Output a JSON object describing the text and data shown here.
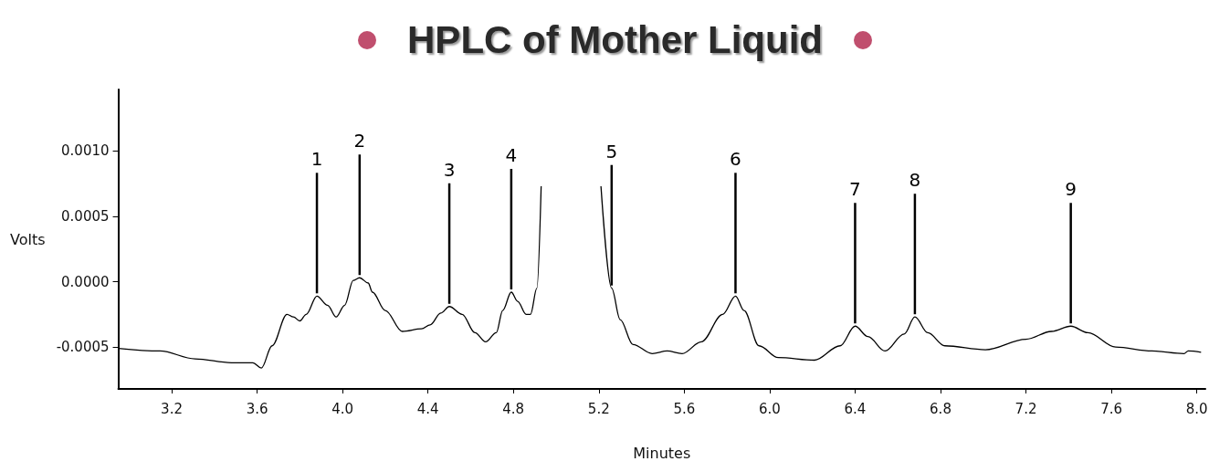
{
  "chart_data": {
    "type": "line",
    "title": "HPLC of Mother Liquid",
    "xlabel": "Minutes",
    "ylabel": "Volts",
    "x": [
      2.95,
      3.145,
      3.31,
      3.48,
      3.58,
      3.62,
      3.67,
      3.74,
      3.77,
      3.8,
      3.83,
      3.88,
      3.93,
      3.97,
      4.01,
      4.05,
      4.08,
      4.12,
      4.14,
      4.2,
      4.28,
      4.37,
      4.41,
      4.46,
      4.5,
      4.56,
      4.62,
      4.67,
      4.72,
      4.75,
      4.79,
      4.82,
      4.86,
      4.88,
      4.91,
      4.93,
      5.05,
      5.21,
      5.26,
      5.3,
      5.36,
      5.45,
      5.52,
      5.59,
      5.68,
      5.78,
      5.84,
      5.88,
      5.95,
      6.04,
      6.21,
      6.33,
      6.4,
      6.46,
      6.54,
      6.63,
      6.68,
      6.74,
      6.82,
      7.01,
      7.2,
      7.32,
      7.41,
      7.49,
      7.62,
      7.79,
      7.94,
      7.96,
      8.02
    ],
    "series": [
      {
        "color": "#000000",
        "values": [
          -0.00051,
          -0.00053,
          -0.00059,
          -0.00062,
          -0.00062,
          -0.00066,
          -0.00049,
          -0.00025,
          -0.00027,
          -0.0003,
          -0.00025,
          -0.00011,
          -0.00018,
          -0.00027,
          -0.00018,
          1e-05,
          3e-05,
          -1e-05,
          -8e-05,
          -0.00022,
          -0.00038,
          -0.00036,
          -0.00033,
          -0.00024,
          -0.00019,
          -0.00025,
          -0.00039,
          -0.00046,
          -0.00039,
          -0.00022,
          -8e-05,
          -0.00015,
          -0.00025,
          -0.00025,
          -5e-05,
          0.00073,
          null,
          0.00073,
          -5e-05,
          -0.00029,
          -0.00048,
          -0.00055,
          -0.00053,
          -0.00055,
          -0.00046,
          -0.00025,
          -0.00011,
          -0.00022,
          -0.00049,
          -0.00058,
          -0.0006,
          -0.00049,
          -0.00034,
          -0.00042,
          -0.00053,
          -0.0004,
          -0.00027,
          -0.00039,
          -0.00049,
          -0.00052,
          -0.00044,
          -0.00038,
          -0.00034,
          -0.00039,
          -0.0005,
          -0.00053,
          -0.00055,
          -0.00053,
          -0.00054
        ]
      }
    ],
    "annotations": [
      {
        "text": "1",
        "x": 3.88,
        "y": -0.00011
      },
      {
        "text": "2",
        "x": 4.08,
        "y": 3e-05
      },
      {
        "text": "3",
        "x": 4.5,
        "y": -0.00019
      },
      {
        "text": "4",
        "x": 4.79,
        "y": -8e-05
      },
      {
        "text": "5",
        "x": 5.26,
        "y": -5e-05
      },
      {
        "text": "6",
        "x": 5.84,
        "y": -0.00011
      },
      {
        "text": "7",
        "x": 6.4,
        "y": -0.00034
      },
      {
        "text": "8",
        "x": 6.68,
        "y": -0.00027
      },
      {
        "text": "9",
        "x": 7.41,
        "y": -0.00034
      }
    ],
    "xlim": [
      2.95,
      8.04
    ],
    "ylim": [
      -0.00082,
      0.00147
    ],
    "xticks": [
      {
        "value": 3.2,
        "label": "3.2"
      },
      {
        "value": 3.6,
        "label": "3.6"
      },
      {
        "value": 4,
        "label": "4.0"
      },
      {
        "value": 4.4,
        "label": "4.4"
      },
      {
        "value": 4.8,
        "label": "4.8"
      },
      {
        "value": 5.2,
        "label": "5.2"
      },
      {
        "value": 5.6,
        "label": "5.6"
      },
      {
        "value": 6,
        "label": "6.0"
      },
      {
        "value": 6.4,
        "label": "6.4"
      },
      {
        "value": 6.8,
        "label": "6.8"
      },
      {
        "value": 7.2,
        "label": "7.2"
      },
      {
        "value": 7.6,
        "label": "7.6"
      },
      {
        "value": 8,
        "label": "8.0"
      }
    ],
    "yticks": [
      {
        "value": -0.0005,
        "label": "-0.0005"
      },
      {
        "value": 0,
        "label": "0.0000"
      },
      {
        "value": 0.0005,
        "label": "0.0005"
      },
      {
        "value": 0.001,
        "label": "0.0010"
      }
    ],
    "marker": "none",
    "line_style": "solid"
  }
}
